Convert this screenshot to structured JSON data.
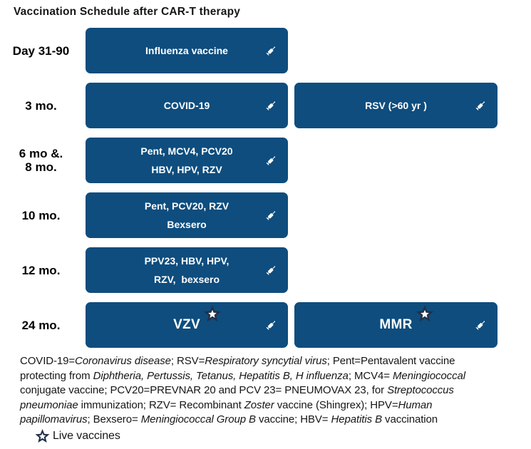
{
  "title": "Vaccination Schedule after CAR-T therapy",
  "colors": {
    "box_blue": "#0E4D7E",
    "star_navy": "#233049",
    "star_inner": "#ffffff",
    "text_black": "#161616"
  },
  "icons": {
    "syringe": "syringe-icon",
    "live_star": "live-vaccine-star-icon"
  },
  "rows": [
    {
      "label_lines": [
        "Day 31-90"
      ],
      "boxes": [
        {
          "lines": [
            "Influenza vaccine"
          ],
          "star": false,
          "big": false
        }
      ]
    },
    {
      "label_lines": [
        "3 mo."
      ],
      "boxes": [
        {
          "lines": [
            "COVID-19"
          ],
          "star": false,
          "big": false
        },
        {
          "lines": [
            "RSV (>60 yr )"
          ],
          "star": false,
          "big": false
        }
      ]
    },
    {
      "label_lines": [
        "6 mo &.",
        "8 mo."
      ],
      "boxes": [
        {
          "lines": [
            "Pent, MCV4, PCV20",
            "HBV, HPV, RZV"
          ],
          "star": false,
          "big": false
        }
      ]
    },
    {
      "label_lines": [
        "10 mo."
      ],
      "boxes": [
        {
          "lines": [
            "Pent, PCV20, RZV",
            "Bexsero"
          ],
          "star": false,
          "big": false
        }
      ]
    },
    {
      "label_lines": [
        "12 mo."
      ],
      "boxes": [
        {
          "lines": [
            "PPV23, HBV, HPV,",
            "RZV,  bexsero"
          ],
          "star": false,
          "big": false
        }
      ]
    },
    {
      "label_lines": [
        "24 mo."
      ],
      "boxes": [
        {
          "lines": [
            "VZV"
          ],
          "star": true,
          "big": true
        },
        {
          "lines": [
            "MMR"
          ],
          "star": true,
          "big": true
        }
      ]
    }
  ],
  "footer": {
    "lines": [
      [
        {
          "t": "COVID-19=",
          "i": false
        },
        {
          "t": "Coronavirus disease",
          "i": true
        },
        {
          "t": "; RSV=",
          "i": false
        },
        {
          "t": "Respiratory syncytial virus",
          "i": true
        },
        {
          "t": "; Pent=Pentavalent vaccine",
          "i": false
        }
      ],
      [
        {
          "t": "protecting from ",
          "i": false
        },
        {
          "t": "Diphtheria, Pertussis, Tetanus, Hepatitis B, H influenza",
          "i": true
        },
        {
          "t": "; MCV4= ",
          "i": false
        },
        {
          "t": "Meningiococcal",
          "i": true
        }
      ],
      [
        {
          "t": "conjugate vaccine; PCV20=PREVNAR 20 and PCV 23= PNEUMOVAX 23, for ",
          "i": false
        },
        {
          "t": "Streptococcus",
          "i": true
        }
      ],
      [
        {
          "t": "pneumoniae",
          "i": true
        },
        {
          "t": " immunization; RZV= Recombinant ",
          "i": false
        },
        {
          "t": "Zoster",
          "i": true
        },
        {
          "t": " vaccine (Shingrex); HPV=",
          "i": false
        },
        {
          "t": "Human",
          "i": true
        }
      ],
      [
        {
          "t": "papillomavirus",
          "i": true
        },
        {
          "t": "; Bexsero= ",
          "i": false
        },
        {
          "t": "Meningiococcal Group B",
          "i": true
        },
        {
          "t": " vaccine; HBV= ",
          "i": false
        },
        {
          "t": "Hepatitis B",
          "i": true
        },
        {
          "t": " vaccination",
          "i": false
        }
      ]
    ],
    "legend": "Live vaccines"
  }
}
